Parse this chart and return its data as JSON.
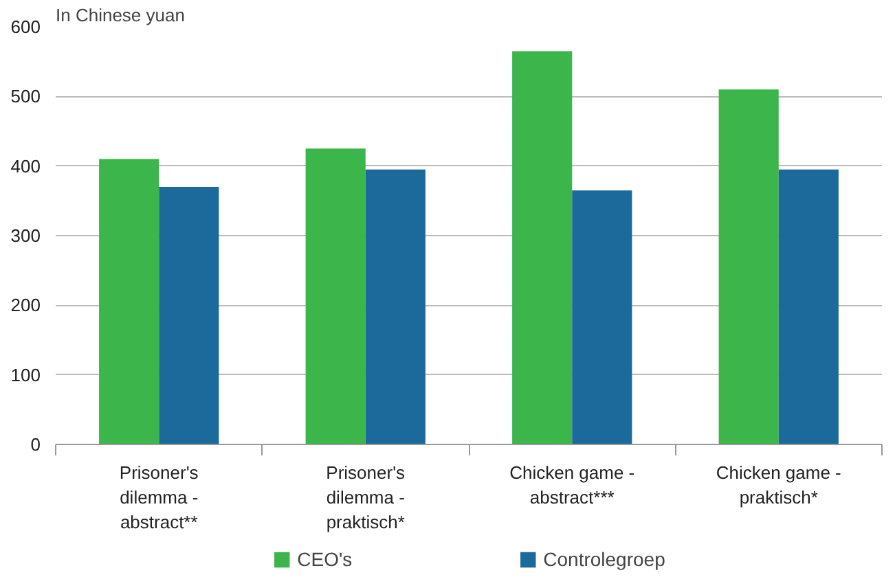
{
  "chart_data": {
    "type": "bar",
    "ylabel": "In Chinese yuan",
    "categories": [
      "Prisoner's dilemma - abstract**",
      "Prisoner's dilemma - praktisch*",
      "Chicken game - abstract***",
      "Chicken game - praktisch*"
    ],
    "series": [
      {
        "name": "CEO's",
        "color": "#3cb54a",
        "values": [
          410,
          425,
          565,
          510
        ]
      },
      {
        "name": "Controlegroep",
        "color": "#1c6a9b",
        "values": [
          370,
          395,
          365,
          395
        ]
      }
    ],
    "ylim": [
      0,
      600
    ],
    "yticks": [
      0,
      100,
      200,
      300,
      400,
      500,
      600
    ],
    "grid": "y",
    "legend": "bottom"
  }
}
